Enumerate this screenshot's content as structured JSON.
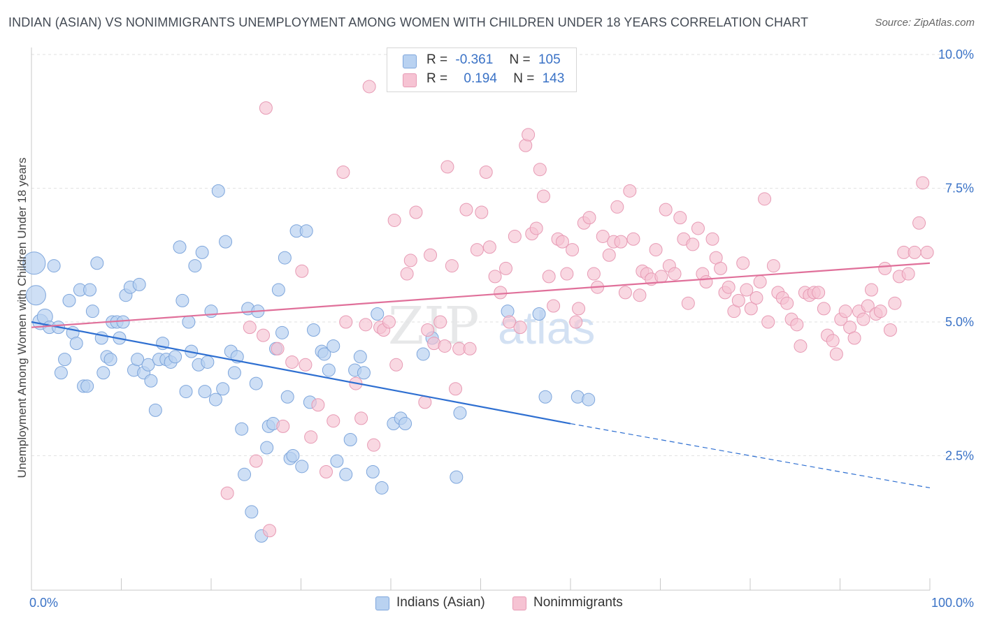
{
  "header": {
    "title": "INDIAN (ASIAN) VS NONIMMIGRANTS UNEMPLOYMENT AMONG WOMEN WITH CHILDREN UNDER 18 YEARS CORRELATION CHART",
    "source": "Source: ZipAtlas.com"
  },
  "legend": {
    "r_label": "R =",
    "n_label": "N =",
    "series1": {
      "r": "-0.361",
      "n": "105"
    },
    "series2": {
      "r": "0.194",
      "n": "143"
    }
  },
  "watermark": {
    "part1": "ZIP",
    "part2": "atlas"
  },
  "colors": {
    "blue_fill": "#b9d2f1",
    "blue_stroke": "#7ea6dc",
    "blue_line": "#2e6fd1",
    "pink_fill": "#f6c3d3",
    "pink_stroke": "#e79ab4",
    "pink_line": "#e0709a",
    "grid": "#e2e2e2",
    "axis_text": "#3a72c6"
  },
  "chart_data": {
    "type": "scatter",
    "title": "INDIAN (ASIAN) VS NONIMMIGRANTS UNEMPLOYMENT AMONG WOMEN WITH CHILDREN UNDER 18 YEARS CORRELATION CHART",
    "xlabel": "",
    "ylabel": "Unemployment Among Women with Children Under 18 years",
    "xlim": [
      0,
      100
    ],
    "ylim": [
      0,
      10.5
    ],
    "x_tick_labels": [
      "0.0%",
      "100.0%"
    ],
    "y_ticks": [
      2.5,
      5.0,
      7.5,
      10.0
    ],
    "y_tick_labels": [
      "2.5%",
      "5.0%",
      "7.5%",
      "10.0%"
    ],
    "grid": true,
    "legend_position": "top-center",
    "series": [
      {
        "name": "Indians (Asian)",
        "color": "#7ea6dc",
        "r": -0.361,
        "n": 105,
        "trend": {
          "x0": 0,
          "y0": 5.0,
          "x1": 60,
          "y1": 3.1,
          "dashed_to_x": 100,
          "dashed_to_y": 1.9
        },
        "points": [
          [
            0.3,
            6.1
          ],
          [
            0.5,
            5.5
          ],
          [
            1,
            5.0
          ],
          [
            1.5,
            5.1
          ],
          [
            2,
            4.9
          ],
          [
            2.5,
            6.05
          ],
          [
            3,
            4.9
          ],
          [
            3.3,
            4.05
          ],
          [
            3.7,
            4.3
          ],
          [
            4.2,
            5.4
          ],
          [
            4.6,
            4.8
          ],
          [
            5,
            4.6
          ],
          [
            5.4,
            5.6
          ],
          [
            5.8,
            3.8
          ],
          [
            6.2,
            3.8
          ],
          [
            6.5,
            5.6
          ],
          [
            6.8,
            5.2
          ],
          [
            7.3,
            6.1
          ],
          [
            7.8,
            4.7
          ],
          [
            8,
            4.05
          ],
          [
            8.4,
            4.35
          ],
          [
            8.8,
            4.3
          ],
          [
            9,
            5.0
          ],
          [
            9.5,
            5.0
          ],
          [
            9.8,
            4.7
          ],
          [
            10.2,
            5.0
          ],
          [
            10.5,
            5.5
          ],
          [
            11,
            5.65
          ],
          [
            11.4,
            4.1
          ],
          [
            11.8,
            4.3
          ],
          [
            12,
            5.7
          ],
          [
            12.5,
            4.05
          ],
          [
            13,
            4.2
          ],
          [
            13.3,
            3.9
          ],
          [
            13.8,
            3.35
          ],
          [
            14.2,
            4.3
          ],
          [
            14.6,
            4.6
          ],
          [
            15,
            4.3
          ],
          [
            15.5,
            4.25
          ],
          [
            16,
            4.35
          ],
          [
            16.5,
            6.4
          ],
          [
            16.8,
            5.4
          ],
          [
            17.2,
            3.7
          ],
          [
            17.5,
            5.0
          ],
          [
            17.8,
            4.45
          ],
          [
            18.2,
            6.05
          ],
          [
            18.6,
            4.2
          ],
          [
            19,
            6.3
          ],
          [
            19.3,
            3.7
          ],
          [
            19.6,
            4.25
          ],
          [
            20,
            5.2
          ],
          [
            20.5,
            3.55
          ],
          [
            20.8,
            7.45
          ],
          [
            21.3,
            3.75
          ],
          [
            21.6,
            6.5
          ],
          [
            22.2,
            4.45
          ],
          [
            22.6,
            4.05
          ],
          [
            22.9,
            4.35
          ],
          [
            23.4,
            3.0
          ],
          [
            23.7,
            2.15
          ],
          [
            24.1,
            5.25
          ],
          [
            24.5,
            1.45
          ],
          [
            25,
            3.85
          ],
          [
            25.2,
            5.2
          ],
          [
            25.6,
            1.0
          ],
          [
            26.2,
            2.65
          ],
          [
            26.4,
            3.05
          ],
          [
            26.9,
            3.1
          ],
          [
            27.2,
            4.5
          ],
          [
            27.5,
            5.6
          ],
          [
            27.9,
            4.8
          ],
          [
            28.2,
            6.2
          ],
          [
            28.5,
            3.6
          ],
          [
            28.8,
            2.45
          ],
          [
            29.1,
            2.5
          ],
          [
            29.5,
            6.7
          ],
          [
            30.1,
            2.3
          ],
          [
            30.6,
            6.7
          ],
          [
            31,
            3.5
          ],
          [
            31.4,
            4.85
          ],
          [
            32.3,
            4.45
          ],
          [
            32.6,
            4.4
          ],
          [
            33.1,
            4.1
          ],
          [
            33.6,
            4.55
          ],
          [
            34,
            2.4
          ],
          [
            35,
            2.15
          ],
          [
            35.5,
            2.8
          ],
          [
            36,
            4.1
          ],
          [
            36.6,
            4.35
          ],
          [
            37,
            4.05
          ],
          [
            38,
            2.2
          ],
          [
            38.5,
            5.15
          ],
          [
            39,
            1.9
          ],
          [
            40.3,
            3.1
          ],
          [
            41.1,
            3.2
          ],
          [
            41.6,
            3.1
          ],
          [
            43.6,
            4.4
          ],
          [
            44.6,
            4.7
          ],
          [
            47.3,
            2.1
          ],
          [
            47.7,
            3.3
          ],
          [
            53,
            5.2
          ],
          [
            56.5,
            5.15
          ],
          [
            57.2,
            3.6
          ],
          [
            60.8,
            3.6
          ],
          [
            62,
            3.55
          ]
        ]
      },
      {
        "name": "Nonimmigrants",
        "color": "#e79ab4",
        "r": 0.194,
        "n": 143,
        "trend": {
          "x0": 0,
          "y0": 4.9,
          "x1": 100,
          "y1": 6.1
        },
        "points": [
          [
            21.8,
            1.8
          ],
          [
            24.3,
            4.9
          ],
          [
            25,
            2.4
          ],
          [
            25.8,
            4.75
          ],
          [
            26.1,
            9.0
          ],
          [
            26.5,
            1.1
          ],
          [
            27.4,
            4.5
          ],
          [
            28,
            3.05
          ],
          [
            29,
            4.25
          ],
          [
            30.1,
            5.95
          ],
          [
            30.5,
            4.2
          ],
          [
            31.1,
            2.85
          ],
          [
            31.9,
            3.45
          ],
          [
            32.8,
            2.2
          ],
          [
            33.6,
            3.15
          ],
          [
            34.7,
            7.8
          ],
          [
            35,
            5.0
          ],
          [
            36.1,
            3.85
          ],
          [
            36.7,
            3.2
          ],
          [
            37.2,
            4.95
          ],
          [
            37.6,
            9.4
          ],
          [
            38.1,
            2.7
          ],
          [
            38.8,
            4.9
          ],
          [
            39.2,
            4.85
          ],
          [
            39.8,
            5.0
          ],
          [
            40.4,
            6.9
          ],
          [
            40.6,
            4.2
          ],
          [
            41.8,
            5.9
          ],
          [
            42.2,
            6.15
          ],
          [
            42.8,
            7.05
          ],
          [
            43.8,
            3.5
          ],
          [
            44.1,
            4.85
          ],
          [
            44.4,
            6.25
          ],
          [
            44.8,
            4.6
          ],
          [
            45.5,
            5.0
          ],
          [
            46,
            4.55
          ],
          [
            46.3,
            7.9
          ],
          [
            46.8,
            6.05
          ],
          [
            47.2,
            3.75
          ],
          [
            47.6,
            4.5
          ],
          [
            48.4,
            7.1
          ],
          [
            48.8,
            4.5
          ],
          [
            49.6,
            6.35
          ],
          [
            50.1,
            7.05
          ],
          [
            50.6,
            7.8
          ],
          [
            51,
            6.4
          ],
          [
            51.6,
            5.85
          ],
          [
            52.2,
            5.55
          ],
          [
            52.8,
            6.0
          ],
          [
            53.2,
            5.0
          ],
          [
            53.8,
            6.6
          ],
          [
            54.4,
            4.9
          ],
          [
            55,
            8.3
          ],
          [
            55.3,
            8.5
          ],
          [
            55.7,
            6.65
          ],
          [
            56.2,
            6.75
          ],
          [
            56.6,
            7.85
          ],
          [
            57,
            7.35
          ],
          [
            57.6,
            5.85
          ],
          [
            58.1,
            5.3
          ],
          [
            58.6,
            6.55
          ],
          [
            59.1,
            6.5
          ],
          [
            59.6,
            5.9
          ],
          [
            60.2,
            6.35
          ],
          [
            60.6,
            5.0
          ],
          [
            60.9,
            5.25
          ],
          [
            61.5,
            6.85
          ],
          [
            62.1,
            6.95
          ],
          [
            62.6,
            5.9
          ],
          [
            63,
            5.65
          ],
          [
            63.6,
            6.6
          ],
          [
            64.3,
            6.25
          ],
          [
            64.8,
            6.5
          ],
          [
            65.2,
            7.15
          ],
          [
            65.6,
            6.5
          ],
          [
            66.1,
            5.55
          ],
          [
            66.6,
            7.45
          ],
          [
            67,
            6.55
          ],
          [
            67.7,
            5.5
          ],
          [
            68,
            5.95
          ],
          [
            68.5,
            5.9
          ],
          [
            69,
            5.8
          ],
          [
            69.5,
            6.35
          ],
          [
            70.1,
            5.85
          ],
          [
            70.6,
            7.1
          ],
          [
            71,
            6.05
          ],
          [
            71.6,
            5.9
          ],
          [
            72.2,
            6.95
          ],
          [
            72.6,
            6.55
          ],
          [
            73.1,
            5.35
          ],
          [
            73.6,
            6.45
          ],
          [
            74.2,
            6.75
          ],
          [
            74.7,
            5.9
          ],
          [
            75.1,
            5.75
          ],
          [
            75.8,
            6.55
          ],
          [
            76.2,
            6.2
          ],
          [
            76.7,
            6.0
          ],
          [
            77.2,
            5.55
          ],
          [
            77.6,
            5.65
          ],
          [
            78.2,
            5.2
          ],
          [
            78.7,
            5.4
          ],
          [
            79.2,
            6.1
          ],
          [
            79.6,
            5.6
          ],
          [
            80.1,
            5.25
          ],
          [
            80.7,
            5.45
          ],
          [
            81.1,
            5.75
          ],
          [
            81.6,
            7.3
          ],
          [
            82,
            5.0
          ],
          [
            82.6,
            6.05
          ],
          [
            83.1,
            5.55
          ],
          [
            83.6,
            5.45
          ],
          [
            84.1,
            5.35
          ],
          [
            84.6,
            5.05
          ],
          [
            85.2,
            4.95
          ],
          [
            85.6,
            4.55
          ],
          [
            86.1,
            5.55
          ],
          [
            86.6,
            5.5
          ],
          [
            87.1,
            5.55
          ],
          [
            87.6,
            5.55
          ],
          [
            88.2,
            5.25
          ],
          [
            88.6,
            4.75
          ],
          [
            89.2,
            4.65
          ],
          [
            89.6,
            4.4
          ],
          [
            90.1,
            5.05
          ],
          [
            90.6,
            5.2
          ],
          [
            91.1,
            4.9
          ],
          [
            91.6,
            4.7
          ],
          [
            92.1,
            5.2
          ],
          [
            92.6,
            5.05
          ],
          [
            93.1,
            5.3
          ],
          [
            93.5,
            5.6
          ],
          [
            94,
            5.15
          ],
          [
            94.5,
            5.2
          ],
          [
            95,
            6.0
          ],
          [
            95.6,
            4.85
          ],
          [
            96.1,
            5.35
          ],
          [
            96.6,
            5.85
          ],
          [
            97.1,
            6.3
          ],
          [
            97.6,
            5.9
          ],
          [
            98.3,
            6.3
          ],
          [
            98.8,
            6.85
          ],
          [
            99.2,
            7.6
          ],
          [
            99.7,
            6.3
          ]
        ]
      }
    ]
  },
  "bottom_legend": {
    "series1": "Indians (Asian)",
    "series2": "Nonimmigrants"
  }
}
